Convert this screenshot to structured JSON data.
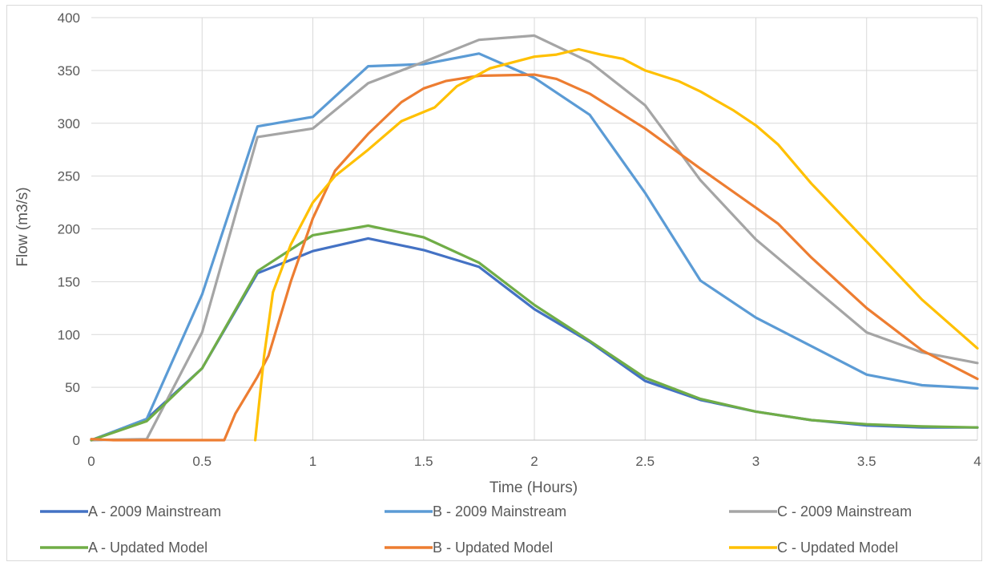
{
  "chart_data": {
    "type": "line",
    "xlabel": "Time (Hours)",
    "ylabel": "Flow (m3/s)",
    "xlim": [
      0,
      4
    ],
    "ylim": [
      0,
      400
    ],
    "xticks": [
      "0",
      "0.5",
      "1",
      "1.5",
      "2",
      "2.5",
      "3",
      "3.5",
      "4"
    ],
    "yticks": [
      "0",
      "50",
      "100",
      "150",
      "200",
      "250",
      "300",
      "350",
      "400"
    ],
    "grid": true,
    "legend_position": "bottom",
    "series": [
      {
        "name": "A - 2009 Mainstream",
        "color": "#4472c4",
        "points": [
          [
            0,
            0
          ],
          [
            0.25,
            20
          ],
          [
            0.5,
            68
          ],
          [
            0.75,
            158
          ],
          [
            1,
            179
          ],
          [
            1.25,
            191
          ],
          [
            1.5,
            180
          ],
          [
            1.75,
            164
          ],
          [
            2,
            124
          ],
          [
            2.25,
            93
          ],
          [
            2.5,
            56
          ],
          [
            2.75,
            38
          ],
          [
            3,
            27
          ],
          [
            3.25,
            19
          ],
          [
            3.5,
            14
          ],
          [
            3.75,
            12
          ],
          [
            4,
            12
          ]
        ]
      },
      {
        "name": "B - 2009 Mainstream",
        "color": "#5b9bd5",
        "points": [
          [
            0,
            0
          ],
          [
            0.25,
            20
          ],
          [
            0.5,
            138
          ],
          [
            0.75,
            297
          ],
          [
            1,
            306
          ],
          [
            1.25,
            354
          ],
          [
            1.5,
            356
          ],
          [
            1.75,
            366
          ],
          [
            2,
            343
          ],
          [
            2.25,
            308
          ],
          [
            2.5,
            234
          ],
          [
            2.75,
            151
          ],
          [
            3,
            116
          ],
          [
            3.25,
            89
          ],
          [
            3.5,
            62
          ],
          [
            3.75,
            52
          ],
          [
            4,
            49
          ]
        ]
      },
      {
        "name": "C - 2009 Mainstream",
        "color": "#a5a5a5",
        "points": [
          [
            0,
            0
          ],
          [
            0.25,
            1
          ],
          [
            0.5,
            102
          ],
          [
            0.75,
            287
          ],
          [
            1,
            295
          ],
          [
            1.25,
            338
          ],
          [
            1.5,
            358
          ],
          [
            1.75,
            379
          ],
          [
            2,
            383
          ],
          [
            2.25,
            358
          ],
          [
            2.5,
            317
          ],
          [
            2.75,
            246
          ],
          [
            3,
            190
          ],
          [
            3.25,
            146
          ],
          [
            3.5,
            102
          ],
          [
            3.75,
            83
          ],
          [
            4,
            73
          ]
        ]
      },
      {
        "name": "A - Updated Model",
        "color": "#70ad47",
        "points": [
          [
            0,
            0
          ],
          [
            0.25,
            18
          ],
          [
            0.5,
            68
          ],
          [
            0.75,
            160
          ],
          [
            1,
            194
          ],
          [
            1.25,
            203
          ],
          [
            1.5,
            192
          ],
          [
            1.75,
            168
          ],
          [
            2,
            128
          ],
          [
            2.25,
            94
          ],
          [
            2.5,
            59
          ],
          [
            2.75,
            39
          ],
          [
            3,
            27
          ],
          [
            3.25,
            19
          ],
          [
            3.5,
            15
          ],
          [
            3.75,
            13
          ],
          [
            4,
            12
          ]
        ]
      },
      {
        "name": "B - Updated Model",
        "color": "#ed7d31",
        "points": [
          [
            0,
            1
          ],
          [
            0.1,
            0
          ],
          [
            0.2,
            0
          ],
          [
            0.6,
            0
          ],
          [
            0.65,
            25
          ],
          [
            0.75,
            60
          ],
          [
            0.8,
            80
          ],
          [
            0.9,
            150
          ],
          [
            1,
            210
          ],
          [
            1.1,
            255
          ],
          [
            1.25,
            290
          ],
          [
            1.4,
            320
          ],
          [
            1.5,
            333
          ],
          [
            1.6,
            340
          ],
          [
            1.75,
            345
          ],
          [
            2,
            346
          ],
          [
            2.1,
            342
          ],
          [
            2.25,
            328
          ],
          [
            2.5,
            295
          ],
          [
            2.75,
            257
          ],
          [
            3,
            220
          ],
          [
            3.1,
            205
          ],
          [
            3.25,
            173
          ],
          [
            3.5,
            125
          ],
          [
            3.75,
            85
          ],
          [
            4,
            58
          ]
        ]
      },
      {
        "name": "C - Updated Model",
        "color": "#ffc000",
        "points": [
          [
            0.74,
            0
          ],
          [
            0.78,
            80
          ],
          [
            0.82,
            140
          ],
          [
            0.9,
            185
          ],
          [
            1,
            225
          ],
          [
            1.1,
            250
          ],
          [
            1.25,
            275
          ],
          [
            1.4,
            302
          ],
          [
            1.55,
            315
          ],
          [
            1.65,
            335
          ],
          [
            1.8,
            352
          ],
          [
            2,
            363
          ],
          [
            2.1,
            365
          ],
          [
            2.2,
            370
          ],
          [
            2.3,
            365
          ],
          [
            2.4,
            361
          ],
          [
            2.5,
            350
          ],
          [
            2.65,
            340
          ],
          [
            2.75,
            330
          ],
          [
            2.9,
            312
          ],
          [
            3,
            298
          ],
          [
            3.1,
            280
          ],
          [
            3.25,
            243
          ],
          [
            3.5,
            188
          ],
          [
            3.75,
            133
          ],
          [
            4,
            87
          ]
        ]
      }
    ]
  }
}
